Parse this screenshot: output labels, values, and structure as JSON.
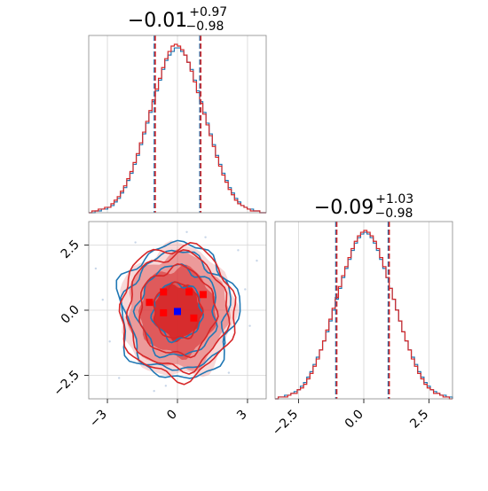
{
  "colors": {
    "series_a": "#1f77b4",
    "series_b": "#d62728",
    "fill_b": "#d62728",
    "truth": "#0000ff"
  },
  "titles": {
    "p1": {
      "main": "−0.01",
      "sup": "+0.97",
      "sub": "−0.98"
    },
    "p2": {
      "main": "−0.09",
      "sup": "+1.03",
      "sub": "−0.98"
    }
  },
  "chart_data": [
    {
      "type": "histogram",
      "panel": "marginal-1",
      "xlim": [
        -3.8,
        3.8
      ],
      "grid": true,
      "quantile_lines": [
        -0.99,
        0.96
      ],
      "series": [
        {
          "color": "series_a",
          "values": [
            0,
            0,
            1,
            1,
            2,
            2,
            3,
            4,
            6,
            8,
            11,
            14,
            18,
            22,
            27,
            32,
            38,
            44,
            50,
            56,
            62,
            68,
            74,
            80,
            85,
            88,
            90,
            92,
            92,
            90,
            88,
            84,
            80,
            74,
            68,
            62,
            56,
            50,
            44,
            38,
            32,
            27,
            22,
            18,
            14,
            11,
            8,
            6,
            4,
            3,
            2,
            2,
            1,
            1,
            0,
            0
          ]
        },
        {
          "color": "series_b",
          "values": [
            0,
            1,
            1,
            2,
            2,
            3,
            3,
            5,
            7,
            9,
            12,
            15,
            19,
            23,
            28,
            33,
            39,
            45,
            51,
            57,
            63,
            69,
            75,
            81,
            86,
            90,
            93,
            94,
            93,
            91,
            88,
            84,
            79,
            73,
            67,
            61,
            55,
            49,
            43,
            37,
            31,
            26,
            21,
            17,
            13,
            10,
            7,
            5,
            4,
            3,
            2,
            1,
            1,
            1,
            0,
            0
          ]
        }
      ]
    },
    {
      "type": "histogram",
      "panel": "marginal-2",
      "xlim": [
        -3.4,
        3.4
      ],
      "xticks": [
        "−2.5",
        "0.0",
        "2.5"
      ],
      "xtick_values": [
        -2.5,
        0.0,
        2.5
      ],
      "grid": true,
      "quantile_lines": [
        -1.07,
        0.94
      ],
      "series": [
        {
          "color": "series_a",
          "values": [
            0,
            1,
            1,
            2,
            2,
            3,
            4,
            5,
            7,
            9,
            12,
            15,
            19,
            23,
            27,
            32,
            37,
            43,
            49,
            55,
            61,
            67,
            72,
            77,
            82,
            86,
            89,
            91,
            92,
            91,
            89,
            86,
            82,
            77,
            72,
            67,
            61,
            55,
            49,
            43,
            37,
            32,
            27,
            23,
            19,
            15,
            12,
            9,
            7,
            5,
            4,
            3,
            2,
            2,
            1,
            1
          ]
        },
        {
          "color": "series_b",
          "values": [
            0,
            1,
            1,
            1,
            2,
            3,
            3,
            5,
            6,
            8,
            11,
            14,
            18,
            22,
            27,
            32,
            38,
            44,
            50,
            56,
            62,
            68,
            73,
            78,
            83,
            87,
            90,
            92,
            93,
            92,
            90,
            87,
            83,
            78,
            73,
            67,
            61,
            55,
            49,
            43,
            37,
            32,
            27,
            22,
            18,
            14,
            11,
            8,
            6,
            5,
            3,
            3,
            2,
            1,
            1,
            0
          ]
        }
      ]
    },
    {
      "type": "contour",
      "panel": "joint",
      "xlim": [
        -3.8,
        3.8
      ],
      "ylim": [
        -3.4,
        3.4
      ],
      "xticks": [
        "−3",
        "0",
        "3"
      ],
      "xtick_values": [
        -3,
        0,
        3
      ],
      "yticks": [
        "2.5",
        "0.0",
        "−2.5"
      ],
      "ytick_values": [
        2.5,
        0.0,
        -2.5
      ],
      "grid": true,
      "levels_sigma": [
        1.0,
        1.6,
        2.1,
        2.4
      ],
      "truth_point": [
        0.0,
        -0.05
      ],
      "red_points": [
        [
          -1.2,
          0.3
        ],
        [
          -0.6,
          0.7
        ],
        [
          0.5,
          0.7
        ],
        [
          1.1,
          0.6
        ],
        [
          -0.6,
          -0.1
        ],
        [
          0.7,
          -0.3
        ]
      ],
      "scatter_points": [
        [
          -3.2,
          0.4
        ],
        [
          -2.9,
          -1.2
        ],
        [
          2.9,
          0.8
        ],
        [
          3.1,
          -0.6
        ],
        [
          -1.8,
          2.6
        ],
        [
          1.2,
          2.8
        ],
        [
          -0.5,
          -2.9
        ],
        [
          2.2,
          -2.4
        ],
        [
          -2.5,
          -2.6
        ],
        [
          2.6,
          2.3
        ],
        [
          -3.5,
          1.6
        ],
        [
          0.4,
          3.0
        ],
        [
          -1.0,
          -3.1
        ],
        [
          3.4,
          1.9
        ]
      ]
    }
  ]
}
